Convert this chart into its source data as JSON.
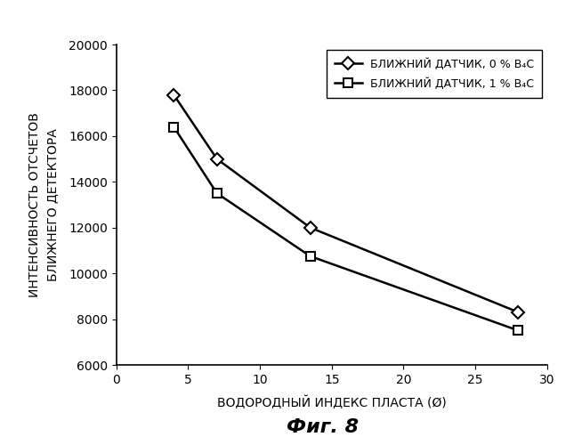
{
  "series1": {
    "x": [
      4,
      7,
      13.5,
      28
    ],
    "y": [
      17800,
      15000,
      12000,
      8300
    ],
    "label": "БЛИЖНИЙ ДАТЧИК, 0 % B₄C",
    "marker": "o"
  },
  "series2": {
    "x": [
      4,
      7,
      13.5,
      28
    ],
    "y": [
      16400,
      13500,
      10750,
      7500
    ],
    "label": "БЛИЖНИЙ ДАТЧИК, 1 % B₄C",
    "marker": "s"
  },
  "xlabel": "ВОДОРОДНЫЙ ИНДЕКС ПЛАСТА (Ø)",
  "ylabel_line1": "ИНТЕНСИВНОСТЬ ОТСЧЕТОВ",
  "ylabel_line2": "БЛИЖНЕГО ДЕТЕКТОРА",
  "title": "Фиг. 8",
  "xlim": [
    0,
    30
  ],
  "ylim": [
    6000,
    20000
  ],
  "yticks": [
    6000,
    8000,
    10000,
    12000,
    14000,
    16000,
    18000,
    20000
  ],
  "xticks": [
    0,
    5,
    10,
    15,
    20,
    25,
    30
  ],
  "background_color": "#ffffff",
  "line_color": "#000000",
  "marker_size": 7,
  "line_width": 1.8,
  "tick_fontsize": 10,
  "label_fontsize": 10,
  "legend_fontsize": 9,
  "title_fontsize": 16
}
